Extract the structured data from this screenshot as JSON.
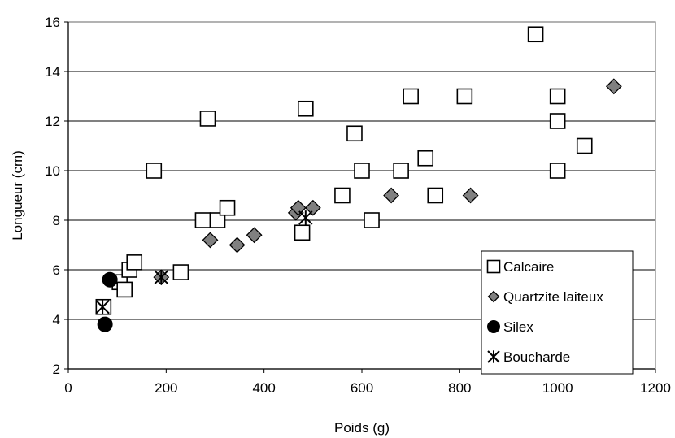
{
  "chart_data": {
    "type": "scatter",
    "title": "",
    "xlabel": "Poids (g)",
    "ylabel": "Longueur (cm)",
    "xlim": [
      0,
      1200
    ],
    "ylim": [
      2,
      16
    ],
    "xticks": [
      0,
      200,
      400,
      600,
      800,
      1000,
      1200
    ],
    "yticks": [
      2,
      4,
      6,
      8,
      10,
      12,
      14,
      16
    ],
    "grid": "horizontal",
    "legend_position": "bottom-right",
    "series": [
      {
        "name": "Calcaire",
        "marker": "square-open",
        "color": "#000000",
        "points": [
          [
            72,
            4.5
          ],
          [
            105,
            5.5
          ],
          [
            115,
            5.2
          ],
          [
            125,
            6.0
          ],
          [
            135,
            6.3
          ],
          [
            175,
            10.0
          ],
          [
            230,
            5.9
          ],
          [
            275,
            8.0
          ],
          [
            285,
            12.1
          ],
          [
            305,
            8.0
          ],
          [
            325,
            8.5
          ],
          [
            478,
            7.5
          ],
          [
            485,
            12.5
          ],
          [
            560,
            9.0
          ],
          [
            585,
            11.5
          ],
          [
            600,
            10.0
          ],
          [
            620,
            8.0
          ],
          [
            680,
            10.0
          ],
          [
            700,
            13.0
          ],
          [
            730,
            10.5
          ],
          [
            750,
            9.0
          ],
          [
            810,
            13.0
          ],
          [
            955,
            15.5
          ],
          [
            1000,
            13.0
          ],
          [
            1000,
            12.0
          ],
          [
            1000,
            10.0
          ],
          [
            1055,
            11.0
          ]
        ]
      },
      {
        "name": "Quartzite laiteux",
        "marker": "diamond",
        "color": "#808080",
        "points": [
          [
            190,
            5.7
          ],
          [
            290,
            7.2
          ],
          [
            345,
            7.0
          ],
          [
            380,
            7.4
          ],
          [
            465,
            8.3
          ],
          [
            470,
            8.5
          ],
          [
            500,
            8.5
          ],
          [
            660,
            9.0
          ],
          [
            822,
            9.0
          ],
          [
            1115,
            13.4
          ]
        ]
      },
      {
        "name": "Silex",
        "marker": "circle",
        "color": "#000000",
        "points": [
          [
            75,
            3.8
          ],
          [
            85,
            5.6
          ]
        ]
      },
      {
        "name": "Boucharde",
        "marker": "asterisk",
        "color": "#000000",
        "points": [
          [
            70,
            4.5
          ],
          [
            190,
            5.7
          ],
          [
            485,
            8.1
          ]
        ]
      }
    ]
  }
}
